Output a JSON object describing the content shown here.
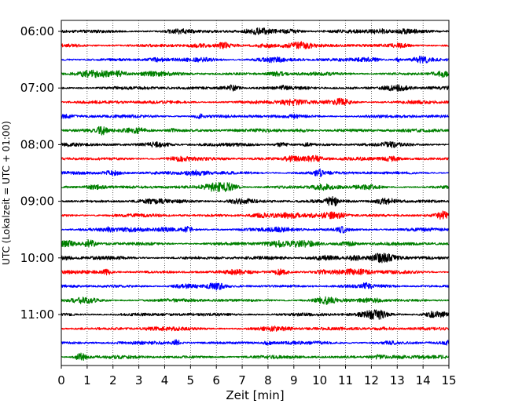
{
  "chart_data": {
    "type": "line",
    "title": "",
    "xlabel": "Zeit  [min]",
    "ylabel": "UTC (Lokalzeit = UTC + 01:00)",
    "xlim": [
      0,
      15
    ],
    "x_ticks": [
      0,
      1,
      2,
      3,
      4,
      5,
      6,
      7,
      8,
      9,
      10,
      11,
      12,
      13,
      14,
      15
    ],
    "x_tick_labels": [
      "0",
      "1",
      "2",
      "3",
      "4",
      "5",
      "6",
      "7",
      "8",
      "9",
      "10",
      "11",
      "12",
      "13",
      "14",
      "15"
    ],
    "x_grid": true,
    "y_grid": false,
    "y_tick_labels": [
      {
        "label": "06:00",
        "row": 0
      },
      {
        "label": "07:00",
        "row": 4
      },
      {
        "label": "08:00",
        "row": 8
      },
      {
        "label": "09:00",
        "row": 12
      },
      {
        "label": "10:00",
        "row": 16
      },
      {
        "label": "11:00",
        "row": 20
      }
    ],
    "trace_colors": [
      "#000000",
      "#ff0000",
      "#0000ff",
      "#008000"
    ],
    "series": [
      {
        "start": "06:00",
        "color": "#000000"
      },
      {
        "start": "06:15",
        "color": "#ff0000"
      },
      {
        "start": "06:30",
        "color": "#0000ff"
      },
      {
        "start": "06:45",
        "color": "#008000"
      },
      {
        "start": "07:00",
        "color": "#000000"
      },
      {
        "start": "07:15",
        "color": "#ff0000"
      },
      {
        "start": "07:30",
        "color": "#0000ff"
      },
      {
        "start": "07:45",
        "color": "#008000"
      },
      {
        "start": "08:00",
        "color": "#000000"
      },
      {
        "start": "08:15",
        "color": "#ff0000"
      },
      {
        "start": "08:30",
        "color": "#0000ff"
      },
      {
        "start": "08:45",
        "color": "#008000"
      },
      {
        "start": "09:00",
        "color": "#000000"
      },
      {
        "start": "09:15",
        "color": "#ff0000"
      },
      {
        "start": "09:30",
        "color": "#0000ff"
      },
      {
        "start": "09:45",
        "color": "#008000"
      },
      {
        "start": "10:00",
        "color": "#000000"
      },
      {
        "start": "10:15",
        "color": "#ff0000"
      },
      {
        "start": "10:30",
        "color": "#0000ff"
      },
      {
        "start": "10:45",
        "color": "#008000"
      },
      {
        "start": "11:00",
        "color": "#000000"
      },
      {
        "start": "11:15",
        "color": "#ff0000"
      },
      {
        "start": "11:30",
        "color": "#0000ff"
      },
      {
        "start": "11:45",
        "color": "#008000"
      }
    ]
  }
}
